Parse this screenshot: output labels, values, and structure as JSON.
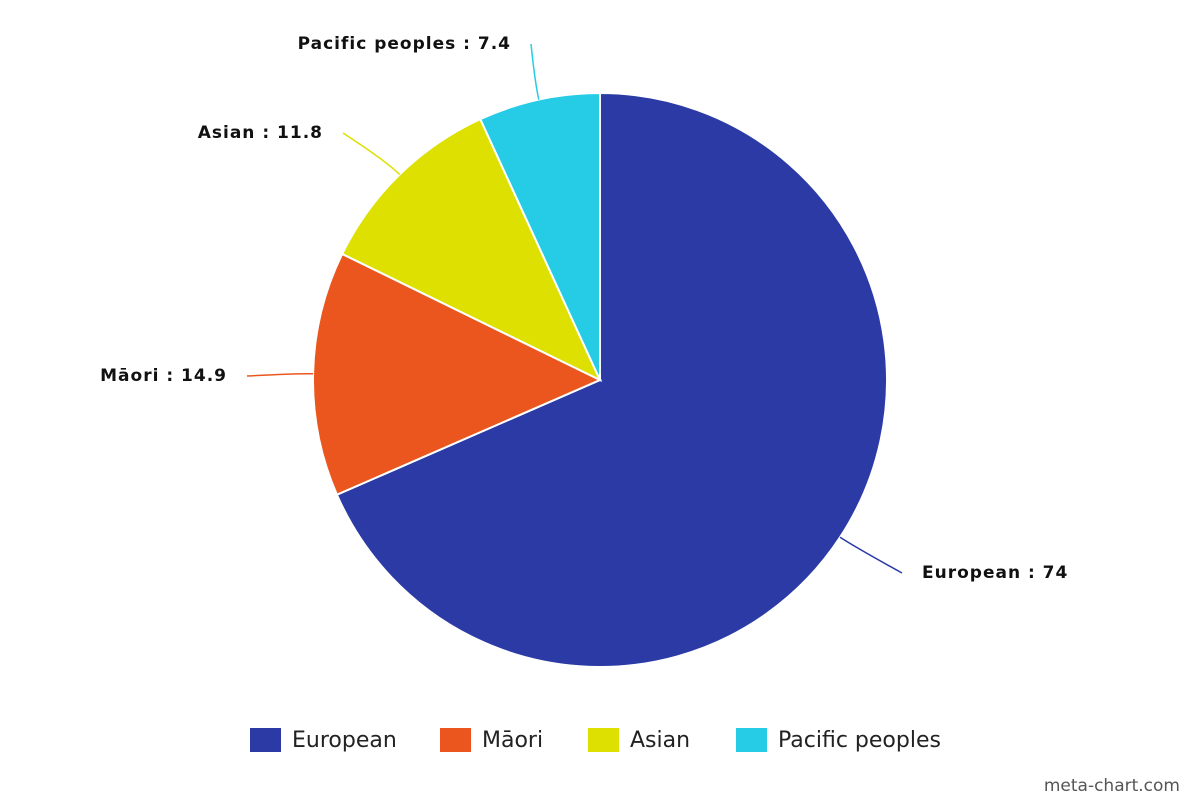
{
  "chart_data": {
    "type": "pie",
    "categories": [
      "European",
      "Māori",
      "Asian",
      "Pacific peoples"
    ],
    "values": [
      74,
      14.9,
      11.8,
      7.4
    ],
    "value_labels": [
      "European : 74",
      "Māori : 14.9",
      "Asian : 11.8",
      "Pacific peoples : 7.4"
    ],
    "colors": [
      "#2b3aa5",
      "#eb561e",
      "#dde000",
      "#26cce6"
    ],
    "legend": "bottom",
    "watermark": "meta-chart.com"
  }
}
